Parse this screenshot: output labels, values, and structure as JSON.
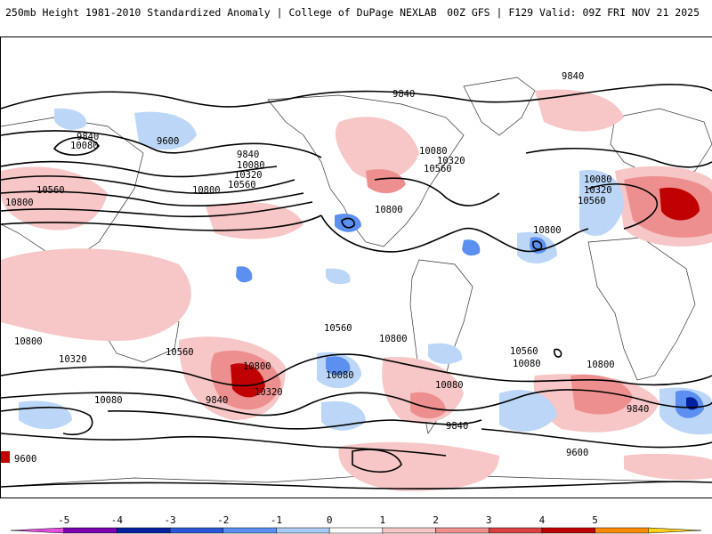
{
  "header": {
    "title_left": "250mb Height 1981-2010 Standardized Anomaly | College of DuPage NEXLAB",
    "title_right": "00Z GFS | F129 Valid: 09Z FRI NOV 21 2025"
  },
  "map": {
    "contour_labels": [
      "9840",
      "9840",
      "9840",
      "10080",
      "9600",
      "9840",
      "10080",
      "10320",
      "10560",
      "10560",
      "10800",
      "10800",
      "10080",
      "10320",
      "10560",
      "10800",
      "10080",
      "10320",
      "10560",
      "10800",
      "10800",
      "10560",
      "10800",
      "10560",
      "10800",
      "10320",
      "10080",
      "10080",
      "9840",
      "10320",
      "10560",
      "10080",
      "10800",
      "9840",
      "10080",
      "9840",
      "9600",
      "9600"
    ]
  },
  "colorbar": {
    "ticks": [
      "-5",
      "-4",
      "-3",
      "-2",
      "-1",
      "0",
      "1",
      "2",
      "3",
      "4",
      "5"
    ],
    "colors": [
      "#e84fe0",
      "#7a00b0",
      "#0022a0",
      "#2a56d8",
      "#5b8ff0",
      "#a9cbf5",
      "#ffffff",
      "#f7c6c6",
      "#ee8f8f",
      "#dd4040",
      "#c00000",
      "#ff8c00",
      "#ffd21a"
    ]
  }
}
